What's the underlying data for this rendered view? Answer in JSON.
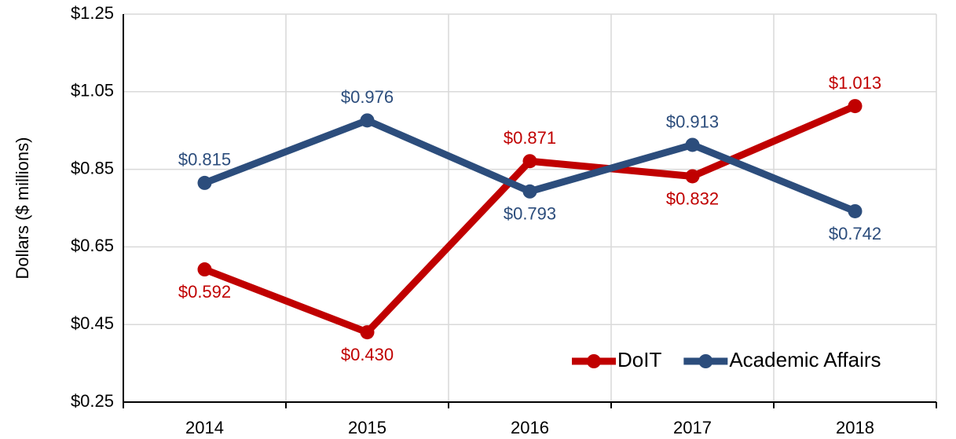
{
  "chart_data": {
    "type": "line",
    "y_label": "Dollars ($ millions)",
    "categories": [
      "2014",
      "2015",
      "2016",
      "2017",
      "2018"
    ],
    "series": [
      {
        "name": "DoIT",
        "color": "#c00000",
        "values": [
          0.592,
          0.43,
          0.871,
          0.832,
          1.013
        ],
        "value_labels": [
          "$0.592",
          "$0.430",
          "$0.871",
          "$0.832",
          "$1.013"
        ]
      },
      {
        "name": "Academic Affairs",
        "color": "#2c4d7c",
        "values": [
          0.815,
          0.976,
          0.793,
          0.913,
          0.742
        ],
        "value_labels": [
          "$0.815",
          "$0.976",
          "$0.793",
          "$0.913",
          "$0.742"
        ]
      }
    ],
    "ylim": [
      0.25,
      1.25
    ],
    "yticks": [
      {
        "value": 0.25,
        "label": "$0.25"
      },
      {
        "value": 0.45,
        "label": "$0.45"
      },
      {
        "value": 0.65,
        "label": "$0.65"
      },
      {
        "value": 0.85,
        "label": "$0.85"
      },
      {
        "value": 1.05,
        "label": "$1.05"
      },
      {
        "value": 1.25,
        "label": "$1.25"
      }
    ],
    "grid": true,
    "legend": "lower right"
  }
}
